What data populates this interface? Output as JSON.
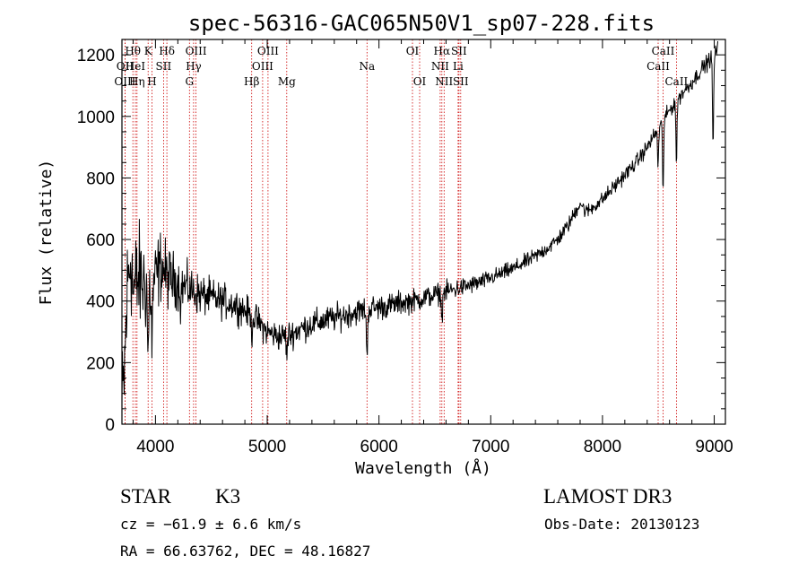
{
  "chart_data": {
    "type": "line",
    "title": "spec-56316-GAC065N50V1_sp07-228.fits",
    "xlabel": "Wavelength (Å)",
    "ylabel": "Flux (relative)",
    "xlim": [
      3700,
      9100
    ],
    "ylim": [
      0,
      1250
    ],
    "xticks": [
      4000,
      5000,
      6000,
      7000,
      8000,
      9000
    ],
    "yticks": [
      0,
      200,
      400,
      600,
      800,
      1000,
      1200
    ],
    "xtick_labels": [
      "4000",
      "5000",
      "6000",
      "7000",
      "8000",
      "9000"
    ],
    "ytick_labels": [
      "0",
      "200",
      "400",
      "600",
      "800",
      "1000",
      "1200"
    ],
    "grid": false,
    "continuum": [
      [
        3700,
        50
      ],
      [
        3720,
        150
      ],
      [
        3750,
        450
      ],
      [
        3780,
        560
      ],
      [
        3800,
        430
      ],
      [
        3850,
        470
      ],
      [
        3900,
        460
      ],
      [
        3950,
        440
      ],
      [
        4000,
        470
      ],
      [
        4050,
        520
      ],
      [
        4100,
        480
      ],
      [
        4150,
        470
      ],
      [
        4200,
        460
      ],
      [
        4300,
        440
      ],
      [
        4400,
        420
      ],
      [
        4500,
        410
      ],
      [
        4600,
        400
      ],
      [
        4700,
        390
      ],
      [
        4800,
        370
      ],
      [
        4900,
        340
      ],
      [
        5000,
        300
      ],
      [
        5100,
        285
      ],
      [
        5200,
        290
      ],
      [
        5300,
        310
      ],
      [
        5400,
        325
      ],
      [
        5500,
        335
      ],
      [
        5600,
        345
      ],
      [
        5700,
        355
      ],
      [
        5800,
        365
      ],
      [
        5900,
        375
      ],
      [
        6000,
        380
      ],
      [
        6100,
        385
      ],
      [
        6200,
        395
      ],
      [
        6300,
        400
      ],
      [
        6400,
        410
      ],
      [
        6500,
        420
      ],
      [
        6600,
        430
      ],
      [
        6700,
        440
      ],
      [
        6800,
        450
      ],
      [
        6900,
        460
      ],
      [
        7000,
        475
      ],
      [
        7100,
        490
      ],
      [
        7200,
        505
      ],
      [
        7300,
        525
      ],
      [
        7400,
        545
      ],
      [
        7500,
        570
      ],
      [
        7600,
        600
      ],
      [
        7700,
        650
      ],
      [
        7800,
        720
      ],
      [
        7850,
        690
      ],
      [
        7900,
        700
      ],
      [
        8000,
        730
      ],
      [
        8100,
        770
      ],
      [
        8200,
        810
      ],
      [
        8300,
        850
      ],
      [
        8400,
        900
      ],
      [
        8500,
        960
      ],
      [
        8600,
        1020
      ],
      [
        8700,
        1070
      ],
      [
        8800,
        1110
      ],
      [
        8900,
        1160
      ],
      [
        8950,
        1180
      ],
      [
        9000,
        1200
      ],
      [
        9030,
        1220
      ]
    ],
    "noise": [
      [
        3700,
        170
      ],
      [
        3800,
        170
      ],
      [
        3900,
        140
      ],
      [
        4000,
        110
      ],
      [
        4100,
        90
      ],
      [
        4200,
        70
      ],
      [
        4400,
        55
      ],
      [
        4700,
        45
      ],
      [
        5000,
        40
      ],
      [
        5500,
        38
      ],
      [
        6000,
        35
      ],
      [
        6500,
        30
      ],
      [
        7000,
        22
      ],
      [
        8000,
        20
      ],
      [
        9000,
        22
      ]
    ],
    "absorption_dips": [
      [
        3934,
        240
      ],
      [
        3969,
        200
      ],
      [
        4226,
        60
      ],
      [
        4861,
        60
      ],
      [
        5175,
        70
      ],
      [
        5893,
        170
      ],
      [
        6563,
        90
      ],
      [
        8498,
        120
      ],
      [
        8542,
        220
      ],
      [
        8662,
        200
      ],
      [
        8990,
        300
      ]
    ],
    "marker_lines": [
      {
        "label": "Hθ",
        "wavelength": 3798,
        "row": 1
      },
      {
        "label": "OII",
        "wavelength": 3727,
        "row": 2
      },
      {
        "label": "OIII",
        "wavelength": 3727,
        "row": 3
      },
      {
        "label": "HeI",
        "wavelength": 3820,
        "row": 2
      },
      {
        "label": "Hη",
        "wavelength": 3835,
        "row": 3
      },
      {
        "label": "K",
        "wavelength": 3934,
        "row": 1
      },
      {
        "label": "H",
        "wavelength": 3969,
        "row": 3
      },
      {
        "label": "SII",
        "wavelength": 4072,
        "row": 2
      },
      {
        "label": "Hδ",
        "wavelength": 4102,
        "row": 1
      },
      {
        "label": "OIII",
        "wavelength": 4363,
        "row": 1
      },
      {
        "label": "Hγ",
        "wavelength": 4341,
        "row": 2
      },
      {
        "label": "G",
        "wavelength": 4304,
        "row": 3
      },
      {
        "label": "Hβ",
        "wavelength": 4861,
        "row": 3
      },
      {
        "label": "OIII",
        "wavelength": 5007,
        "row": 1
      },
      {
        "label": "OIII",
        "wavelength": 4959,
        "row": 2
      },
      {
        "label": "Mg",
        "wavelength": 5175,
        "row": 3
      },
      {
        "label": "Na",
        "wavelength": 5893,
        "row": 2
      },
      {
        "label": "OI",
        "wavelength": 6300,
        "row": 1
      },
      {
        "label": "OI",
        "wavelength": 6364,
        "row": 3
      },
      {
        "label": "Hα",
        "wavelength": 6563,
        "row": 1
      },
      {
        "label": "NII",
        "wavelength": 6548,
        "row": 2
      },
      {
        "label": "NII",
        "wavelength": 6583,
        "row": 3
      },
      {
        "label": "SII",
        "wavelength": 6716,
        "row": 1
      },
      {
        "label": "Li",
        "wavelength": 6708,
        "row": 2
      },
      {
        "label": "SII",
        "wavelength": 6731,
        "row": 3
      },
      {
        "label": "CaII",
        "wavelength": 8542,
        "row": 1
      },
      {
        "label": "CaII",
        "wavelength": 8498,
        "row": 2
      },
      {
        "label": "CaII",
        "wavelength": 8662,
        "row": 3
      }
    ]
  },
  "info": {
    "object_class": "STAR",
    "subclass": "K3",
    "redshift": "cz = −61.9 ± 6.6 km/s",
    "coordinates": "RA =  66.63762, DEC =  48.16827",
    "survey": "LAMOST DR3",
    "obs_date": "Obs-Date: 20130123"
  },
  "colors": {
    "marker_line": "#cc0000",
    "spectrum": "#000000",
    "axes": "#000000"
  }
}
